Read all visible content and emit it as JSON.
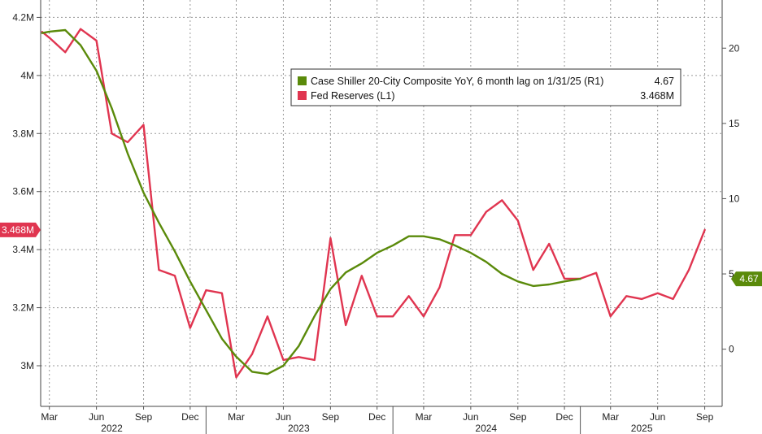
{
  "chart_data": {
    "type": "line",
    "x": [
      "2022-03",
      "2022-04",
      "2022-05",
      "2022-06",
      "2022-07",
      "2022-08",
      "2022-09",
      "2022-10",
      "2022-11",
      "2022-12",
      "2023-01",
      "2023-02",
      "2023-03",
      "2023-04",
      "2023-05",
      "2023-06",
      "2023-07",
      "2023-08",
      "2023-09",
      "2023-10",
      "2023-11",
      "2023-12",
      "2024-01",
      "2024-02",
      "2024-03",
      "2024-04",
      "2024-05",
      "2024-06",
      "2024-07",
      "2024-08",
      "2024-09",
      "2024-10",
      "2024-11",
      "2024-12",
      "2025-01",
      "2025-02",
      "2025-03",
      "2025-04",
      "2025-05",
      "2025-06",
      "2025-07",
      "2025-08",
      "2025-09"
    ],
    "series": [
      {
        "name": "Case Shiller 20-City Composite YoY, 6 month lag on 1/31/25 (R1)",
        "axis": "right",
        "color": "#5a8a0a",
        "last_value": "4.67",
        "points": [
          [
            "2022-02-15",
            21.0
          ],
          [
            "2022-03-01",
            21.1
          ],
          [
            "2022-04-01",
            21.2
          ],
          [
            "2022-05-01",
            20.2
          ],
          [
            "2022-06-01",
            18.5
          ],
          [
            "2022-07-01",
            16.0
          ],
          [
            "2022-08-01",
            13.0
          ],
          [
            "2022-09-01",
            10.4
          ],
          [
            "2022-10-01",
            8.4
          ],
          [
            "2022-11-01",
            6.5
          ],
          [
            "2022-12-01",
            4.5
          ],
          [
            "2023-01-01",
            2.6
          ],
          [
            "2023-02-01",
            0.7
          ],
          [
            "2023-03-01",
            -0.5
          ],
          [
            "2023-04-01",
            -1.5
          ],
          [
            "2023-05-01",
            -1.65
          ],
          [
            "2023-06-01",
            -1.1
          ],
          [
            "2023-07-01",
            0.2
          ],
          [
            "2023-08-01",
            2.2
          ],
          [
            "2023-09-01",
            4.0
          ],
          [
            "2023-10-01",
            5.1
          ],
          [
            "2023-11-01",
            5.7
          ],
          [
            "2023-12-01",
            6.4
          ],
          [
            "2024-01-01",
            6.9
          ],
          [
            "2024-02-01",
            7.5
          ],
          [
            "2024-03-01",
            7.5
          ],
          [
            "2024-04-01",
            7.3
          ],
          [
            "2024-05-01",
            6.9
          ],
          [
            "2024-06-01",
            6.4
          ],
          [
            "2024-07-01",
            5.8
          ],
          [
            "2024-08-01",
            5.0
          ],
          [
            "2024-09-01",
            4.5
          ],
          [
            "2024-10-01",
            4.2
          ],
          [
            "2024-11-01",
            4.3
          ],
          [
            "2024-12-01",
            4.5
          ],
          [
            "2025-01-01",
            4.67
          ]
        ]
      },
      {
        "name": "Fed Reserves (L1)",
        "axis": "left",
        "color": "#e03550",
        "last_value": "3.468M",
        "points": [
          [
            "2022-02-15",
            4.15
          ],
          [
            "2022-03-01",
            4.13
          ],
          [
            "2022-04-01",
            4.08
          ],
          [
            "2022-05-01",
            4.16
          ],
          [
            "2022-06-01",
            4.12
          ],
          [
            "2022-07-01",
            3.8
          ],
          [
            "2022-08-01",
            3.77
          ],
          [
            "2022-09-01",
            3.83
          ],
          [
            "2022-10-01",
            3.33
          ],
          [
            "2022-11-01",
            3.31
          ],
          [
            "2022-12-01",
            3.13
          ],
          [
            "2023-01-01",
            3.26
          ],
          [
            "2023-02-01",
            3.25
          ],
          [
            "2023-03-01",
            2.96
          ],
          [
            "2023-04-01",
            3.04
          ],
          [
            "2023-05-01",
            3.17
          ],
          [
            "2023-06-01",
            3.02
          ],
          [
            "2023-07-01",
            3.03
          ],
          [
            "2023-08-01",
            3.02
          ],
          [
            "2023-09-01",
            3.44
          ],
          [
            "2023-10-01",
            3.14
          ],
          [
            "2023-11-01",
            3.31
          ],
          [
            "2023-12-01",
            3.17
          ],
          [
            "2024-01-01",
            3.17
          ],
          [
            "2024-02-01",
            3.24
          ],
          [
            "2024-03-01",
            3.17
          ],
          [
            "2024-04-01",
            3.27
          ],
          [
            "2024-05-01",
            3.45
          ],
          [
            "2024-06-01",
            3.45
          ],
          [
            "2024-07-01",
            3.53
          ],
          [
            "2024-08-01",
            3.57
          ],
          [
            "2024-09-01",
            3.5
          ],
          [
            "2024-10-01",
            3.33
          ],
          [
            "2024-11-01",
            3.42
          ],
          [
            "2024-12-01",
            3.3
          ],
          [
            "2025-01-01",
            3.3
          ],
          [
            "2025-02-01",
            3.32
          ],
          [
            "2025-03-01",
            3.17
          ],
          [
            "2025-04-01",
            3.24
          ],
          [
            "2025-05-01",
            3.23
          ],
          [
            "2025-06-01",
            3.25
          ],
          [
            "2025-07-01",
            3.23
          ],
          [
            "2025-08-01",
            3.33
          ],
          [
            "2025-09-01",
            3.468
          ]
        ]
      }
    ],
    "left_axis": {
      "ticks": [
        {
          "value": 3.0,
          "label": "3M"
        },
        {
          "value": 3.2,
          "label": "3.2M"
        },
        {
          "value": 3.4,
          "label": "3.4M"
        },
        {
          "value": 3.6,
          "label": "3.6M"
        },
        {
          "value": 3.8,
          "label": "3.8M"
        },
        {
          "value": 4.0,
          "label": "4M"
        },
        {
          "value": 4.2,
          "label": "4.2M"
        }
      ],
      "range": [
        2.86,
        4.26
      ],
      "current_badge": {
        "value": 3.468,
        "label": "3.468M",
        "color": "#e03550"
      }
    },
    "right_axis": {
      "ticks": [
        {
          "value": 0,
          "label": "0"
        },
        {
          "value": 5,
          "label": "5"
        },
        {
          "value": 10,
          "label": "10"
        },
        {
          "value": 15,
          "label": "15"
        },
        {
          "value": 20,
          "label": "20"
        }
      ],
      "range": [
        -3.8,
        23.2
      ],
      "current_badge": {
        "value": 4.67,
        "label": "4.67",
        "color": "#5a8a0a"
      }
    },
    "x_axis": {
      "months": [
        {
          "date": "2022-03-01",
          "label": "Mar"
        },
        {
          "date": "2022-06-01",
          "label": "Jun"
        },
        {
          "date": "2022-09-01",
          "label": "Sep"
        },
        {
          "date": "2022-12-01",
          "label": "Dec"
        },
        {
          "date": "2023-03-01",
          "label": "Mar"
        },
        {
          "date": "2023-06-01",
          "label": "Jun"
        },
        {
          "date": "2023-09-01",
          "label": "Sep"
        },
        {
          "date": "2023-12-01",
          "label": "Dec"
        },
        {
          "date": "2024-03-01",
          "label": "Mar"
        },
        {
          "date": "2024-06-01",
          "label": "Jun"
        },
        {
          "date": "2024-09-01",
          "label": "Sep"
        },
        {
          "date": "2024-12-01",
          "label": "Dec"
        },
        {
          "date": "2025-03-01",
          "label": "Mar"
        },
        {
          "date": "2025-06-01",
          "label": "Jun"
        },
        {
          "date": "2025-09-01",
          "label": "Sep"
        }
      ],
      "years": [
        {
          "label": "2022",
          "center": "2022-07-01"
        },
        {
          "label": "2023",
          "center": "2023-07-01"
        },
        {
          "label": "2024",
          "center": "2024-07-01"
        },
        {
          "label": "2025",
          "center": "2025-05-01"
        }
      ],
      "year_dividers": [
        "2023-01-01",
        "2024-01-01",
        "2025-01-01"
      ],
      "range": [
        "2022-02-12",
        "2025-10-05"
      ]
    },
    "grid": true,
    "legend_position": "center-right"
  }
}
